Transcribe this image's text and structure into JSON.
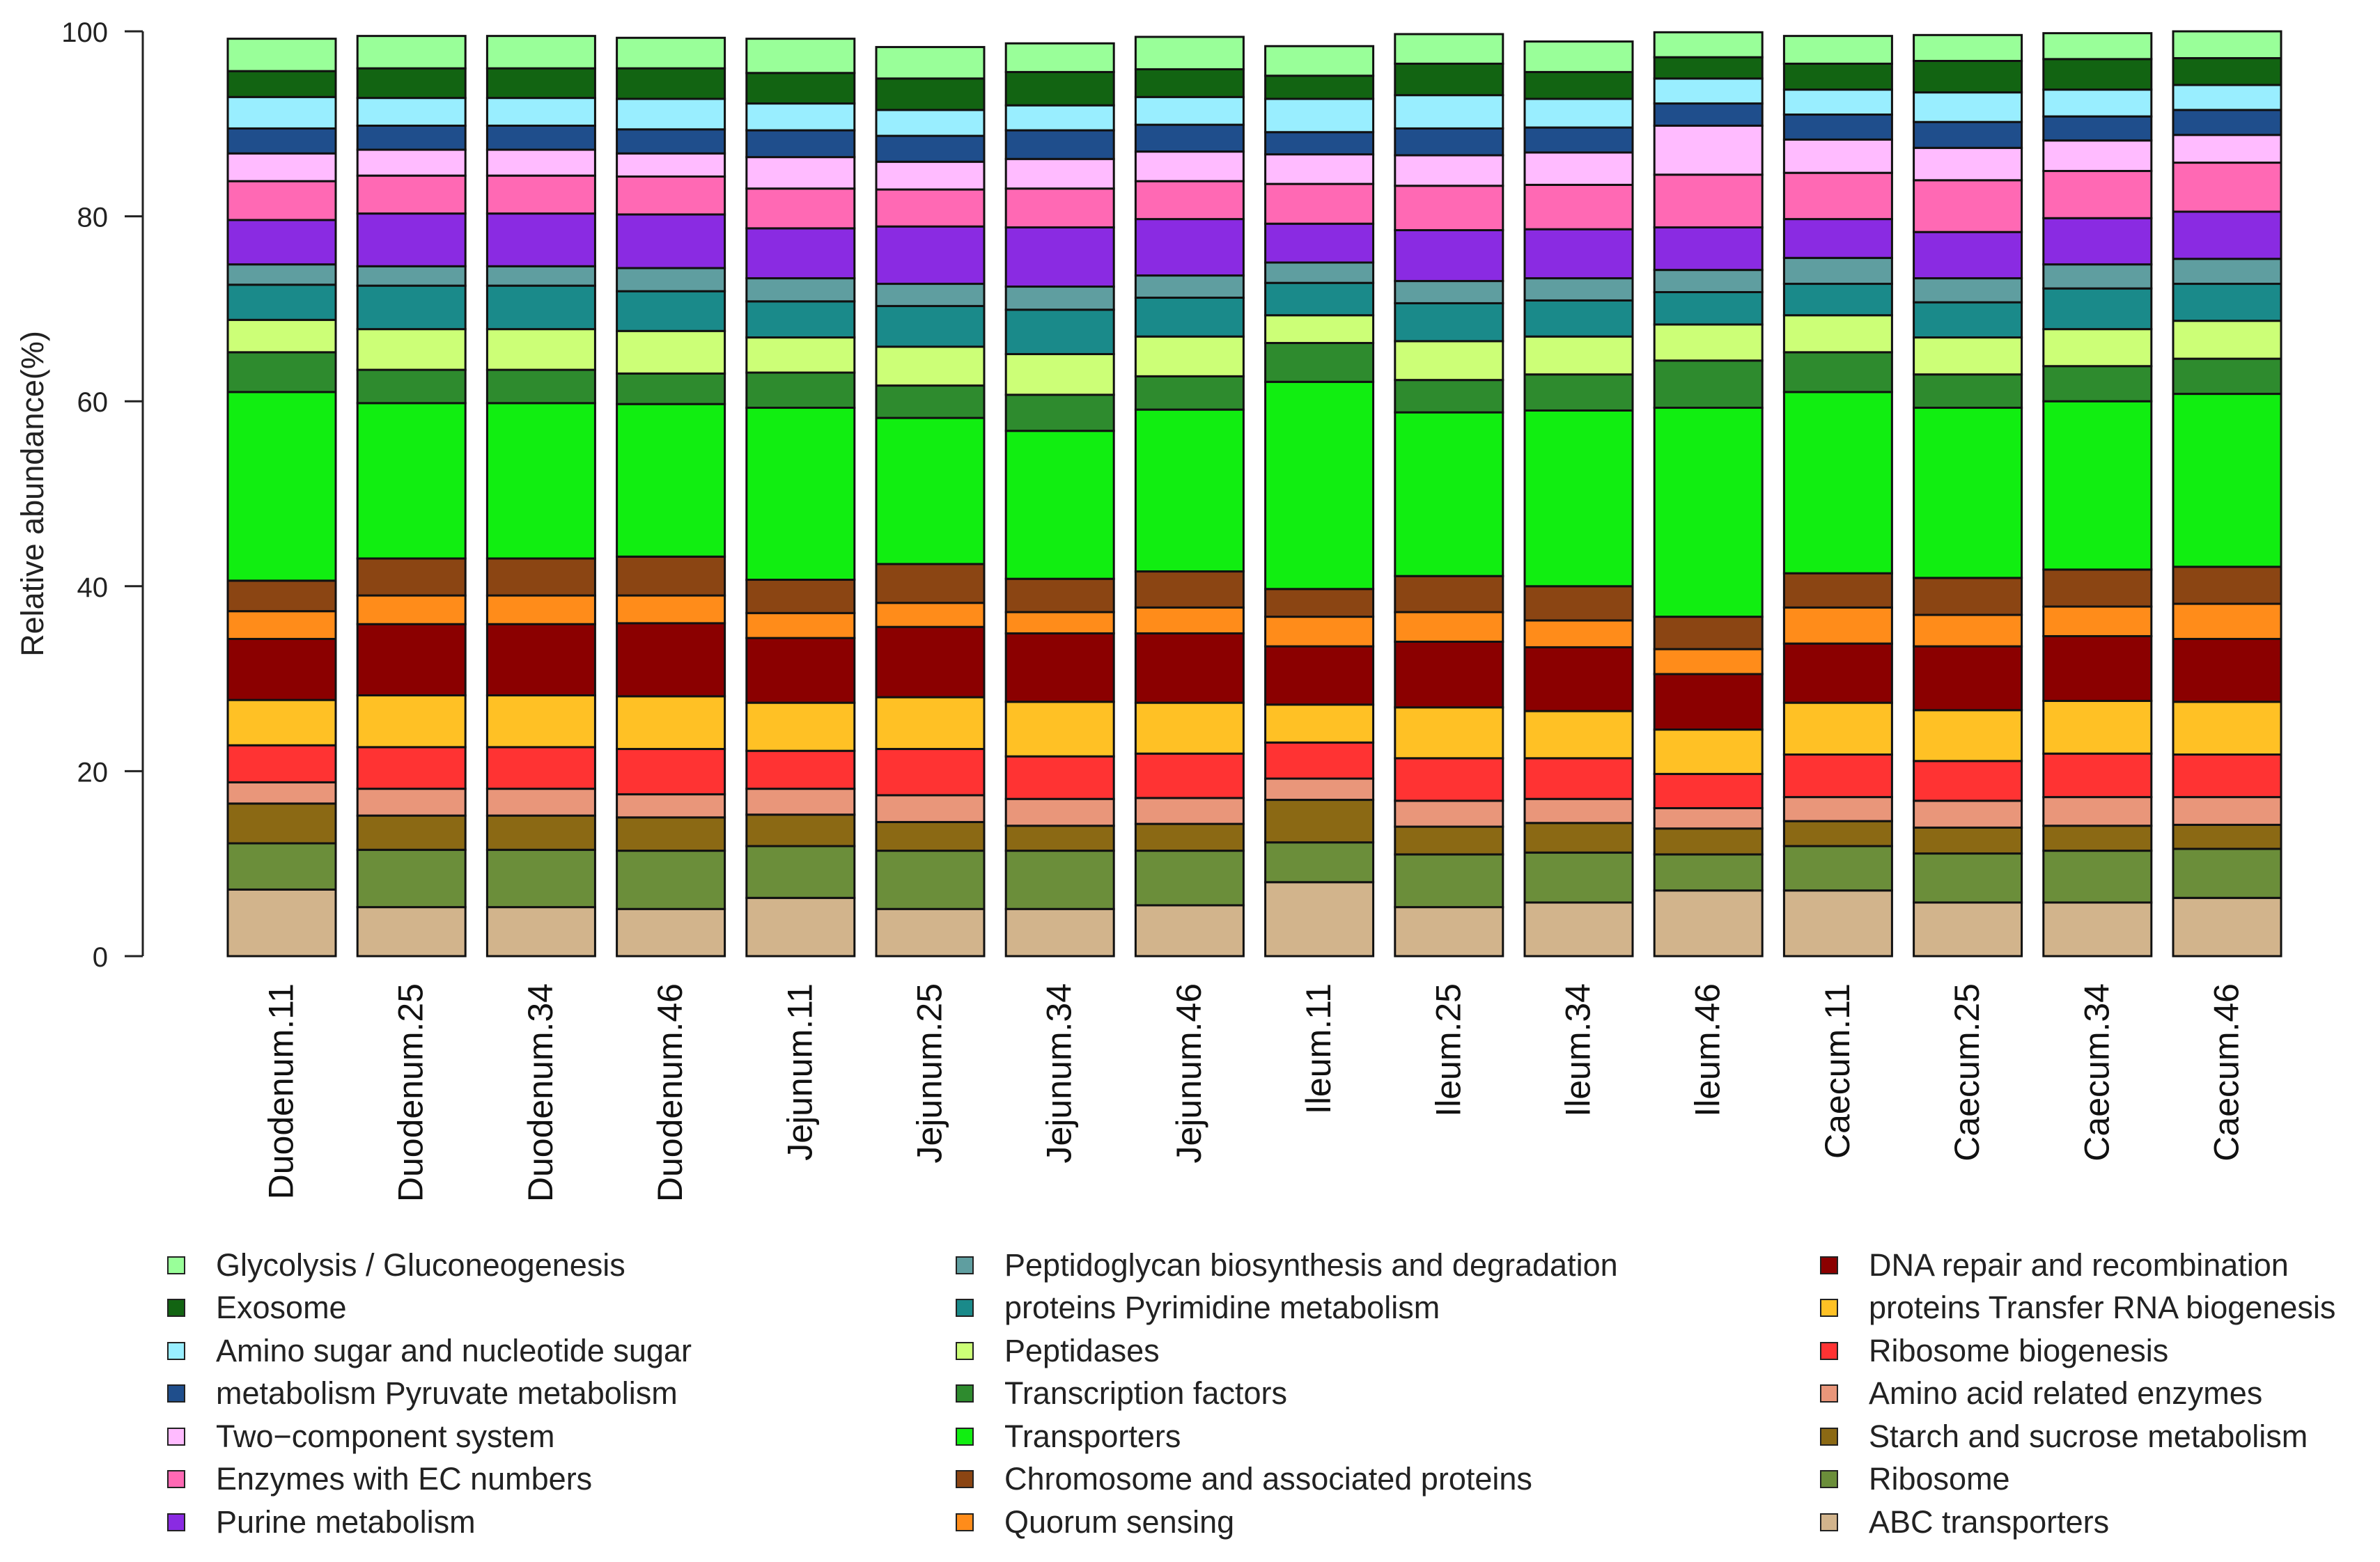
{
  "chart_data": {
    "type": "bar",
    "stacked": true,
    "ylabel": "Relative abundance(%)",
    "ylim": [
      0,
      100
    ],
    "yticks": [
      0,
      20,
      40,
      60,
      80,
      100
    ],
    "categories": [
      "Duodenum.11",
      "Duodenum.25",
      "Duodenum.34",
      "Duodenum.46",
      "Jejunum.11",
      "Jejunum.25",
      "Jejunum.34",
      "Jejunum.46",
      "Ileum.11",
      "Ileum.25",
      "Ileum.34",
      "Ileum.46",
      "Caecum.11",
      "Caecum.25",
      "Caecum.34",
      "Caecum.46"
    ],
    "series": [
      {
        "name": "ABC transporters",
        "color": "#D2B48C",
        "values": [
          7.2,
          5.3,
          5.3,
          5.1,
          6.3,
          5.1,
          5.1,
          5.5,
          8.0,
          5.3,
          5.8,
          7.1,
          7.1,
          5.8,
          5.8,
          6.3
        ]
      },
      {
        "name": "Ribosome",
        "color": "#6B8E3A",
        "values": [
          5.0,
          6.2,
          6.2,
          6.3,
          5.6,
          6.3,
          6.3,
          5.9,
          4.3,
          5.7,
          5.4,
          3.9,
          4.8,
          5.3,
          5.6,
          5.3
        ]
      },
      {
        "name": "Starch and sucrose metabolism",
        "color": "#8B6914",
        "values": [
          4.3,
          3.7,
          3.7,
          3.6,
          3.4,
          3.1,
          2.7,
          2.9,
          4.6,
          3.0,
          3.2,
          2.8,
          2.7,
          2.8,
          2.7,
          2.6
        ]
      },
      {
        "name": "Amino acid related enzymes",
        "color": "#E9967A",
        "values": [
          2.3,
          2.9,
          2.9,
          2.5,
          2.8,
          2.9,
          2.9,
          2.8,
          2.3,
          2.8,
          2.6,
          2.2,
          2.6,
          2.9,
          3.1,
          3.0
        ]
      },
      {
        "name": "Ribosome biogenesis",
        "color": "#FF3333",
        "values": [
          4.0,
          4.5,
          4.5,
          4.9,
          4.1,
          5.0,
          4.6,
          4.8,
          3.9,
          4.6,
          4.4,
          3.7,
          4.6,
          4.3,
          4.7,
          4.6
        ]
      },
      {
        "name": "proteins Transfer RNA biogenesis",
        "color": "#FFC125",
        "values": [
          4.9,
          5.6,
          5.6,
          5.7,
          5.2,
          5.6,
          5.9,
          5.5,
          4.1,
          5.5,
          5.1,
          4.8,
          5.6,
          5.5,
          5.7,
          5.7
        ]
      },
      {
        "name": "DNA repair and recombination",
        "color": "#8B0000",
        "values": [
          6.6,
          7.7,
          7.7,
          7.9,
          7.0,
          7.6,
          7.4,
          7.5,
          6.3,
          7.1,
          6.9,
          6.0,
          6.4,
          6.9,
          7.0,
          6.8
        ]
      },
      {
        "name": "Quorum sensing",
        "color": "#FF8C1A",
        "values": [
          3.0,
          3.1,
          3.1,
          3.0,
          2.7,
          2.6,
          2.3,
          2.8,
          3.2,
          3.2,
          2.9,
          2.7,
          3.9,
          3.4,
          3.2,
          3.8
        ]
      },
      {
        "name": "Chromosome and associated proteins",
        "color": "#8B4513",
        "values": [
          3.3,
          4.0,
          4.0,
          4.2,
          3.6,
          4.2,
          3.6,
          3.9,
          3.0,
          3.9,
          3.7,
          3.5,
          3.7,
          4.0,
          4.0,
          4.0
        ]
      },
      {
        "name": "Transporters",
        "color": "#11EE11",
        "values": [
          20.4,
          16.8,
          16.8,
          16.5,
          18.6,
          15.8,
          16.0,
          17.5,
          22.4,
          17.7,
          19.0,
          22.6,
          19.6,
          18.4,
          18.2,
          18.7
        ]
      },
      {
        "name": "Transcription factors",
        "color": "#2E8B2E",
        "values": [
          4.3,
          3.6,
          3.6,
          3.3,
          3.8,
          3.5,
          3.9,
          3.6,
          4.2,
          3.5,
          3.9,
          5.1,
          4.3,
          3.6,
          3.8,
          3.8
        ]
      },
      {
        "name": "Peptidases",
        "color": "#CCFF77",
        "values": [
          3.5,
          4.4,
          4.4,
          4.6,
          3.8,
          4.2,
          4.4,
          4.3,
          3.0,
          4.2,
          4.1,
          3.9,
          4.0,
          4.0,
          4.0,
          4.1
        ]
      },
      {
        "name": "proteins Pyrimidine metabolism",
        "color": "#1A8A8A",
        "values": [
          3.8,
          4.7,
          4.7,
          4.3,
          3.9,
          4.4,
          4.8,
          4.2,
          3.5,
          4.1,
          3.9,
          3.5,
          3.4,
          3.8,
          4.4,
          4.0
        ]
      },
      {
        "name": "Peptidoglycan biosynthesis and degradation",
        "color": "#5F9EA0",
        "values": [
          2.2,
          2.1,
          2.1,
          2.5,
          2.5,
          2.4,
          2.5,
          2.4,
          2.2,
          2.4,
          2.4,
          2.4,
          2.8,
          2.6,
          2.6,
          2.7
        ]
      },
      {
        "name": "Purine metabolism",
        "color": "#8A2BE2",
        "values": [
          4.8,
          5.7,
          5.7,
          5.8,
          5.4,
          6.2,
          6.4,
          6.1,
          4.2,
          5.5,
          5.3,
          4.6,
          4.2,
          5.0,
          5.0,
          5.1
        ]
      },
      {
        "name": "Enzymes with EC numbers",
        "color": "#FF69B4",
        "values": [
          4.2,
          4.1,
          4.1,
          4.1,
          4.3,
          4.0,
          4.2,
          4.1,
          4.3,
          4.8,
          4.8,
          5.7,
          5.0,
          5.6,
          5.1,
          5.3
        ]
      },
      {
        "name": "Two-component system",
        "color": "#FFBBFF",
        "values": [
          3.0,
          2.8,
          2.8,
          2.5,
          3.4,
          3.0,
          3.2,
          3.2,
          3.2,
          3.3,
          3.5,
          5.3,
          3.6,
          3.5,
          3.3,
          3.0
        ]
      },
      {
        "name": "metabolism Pyruvate metabolism",
        "color": "#1F4E8C",
        "values": [
          2.7,
          2.6,
          2.6,
          2.6,
          2.9,
          2.8,
          3.1,
          2.9,
          2.4,
          2.9,
          2.7,
          2.4,
          2.7,
          2.8,
          2.6,
          2.7
        ]
      },
      {
        "name": "Amino sugar and nucleotide sugar",
        "color": "#99EEFF",
        "values": [
          3.4,
          3.0,
          3.0,
          3.3,
          2.9,
          2.8,
          2.7,
          3.0,
          3.6,
          3.6,
          3.1,
          2.7,
          2.7,
          3.2,
          2.9,
          2.7
        ]
      },
      {
        "name": "Exosome",
        "color": "#126412",
        "values": [
          2.8,
          3.2,
          3.2,
          3.3,
          3.3,
          3.4,
          3.6,
          3.0,
          2.5,
          3.4,
          2.9,
          2.3,
          2.8,
          3.4,
          3.3,
          2.9
        ]
      },
      {
        "name": "Glycolysis / Gluconeogenesis",
        "color": "#99FF99",
        "values": [
          3.5,
          3.5,
          3.5,
          3.3,
          3.7,
          3.4,
          3.1,
          3.5,
          3.2,
          3.2,
          3.3,
          2.7,
          3.0,
          2.8,
          2.8,
          2.9
        ]
      }
    ],
    "legend": {
      "placement": "bottom",
      "columns": [
        [
          "Glycolysis / Gluconeogenesis",
          "Exosome",
          "Amino sugar and nucleotide sugar",
          "metabolism Pyruvate metabolism",
          "Two−component system",
          "Enzymes with EC numbers",
          "Purine metabolism"
        ],
        [
          "Peptidoglycan biosynthesis and degradation",
          "proteins Pyrimidine metabolism",
          "Peptidases",
          "Transcription factors",
          "Transporters",
          "Chromosome and associated proteins",
          "Quorum sensing"
        ],
        [
          "DNA repair and recombination",
          "proteins Transfer RNA biogenesis",
          "Ribosome biogenesis",
          "Amino acid related enzymes",
          "Starch and sucrose metabolism",
          "Ribosome",
          "ABC transporters"
        ]
      ],
      "colors": [
        [
          "#99FF99",
          "#126412",
          "#99EEFF",
          "#1F4E8C",
          "#FFBBFF",
          "#FF69B4",
          "#8A2BE2"
        ],
        [
          "#5F9EA0",
          "#1A8A8A",
          "#CCFF77",
          "#2E8B2E",
          "#11EE11",
          "#8B4513",
          "#FF8C1A"
        ],
        [
          "#8B0000",
          "#FFC125",
          "#FF3333",
          "#E9967A",
          "#8B6914",
          "#6B8E3A",
          "#D2B48C"
        ]
      ]
    }
  }
}
